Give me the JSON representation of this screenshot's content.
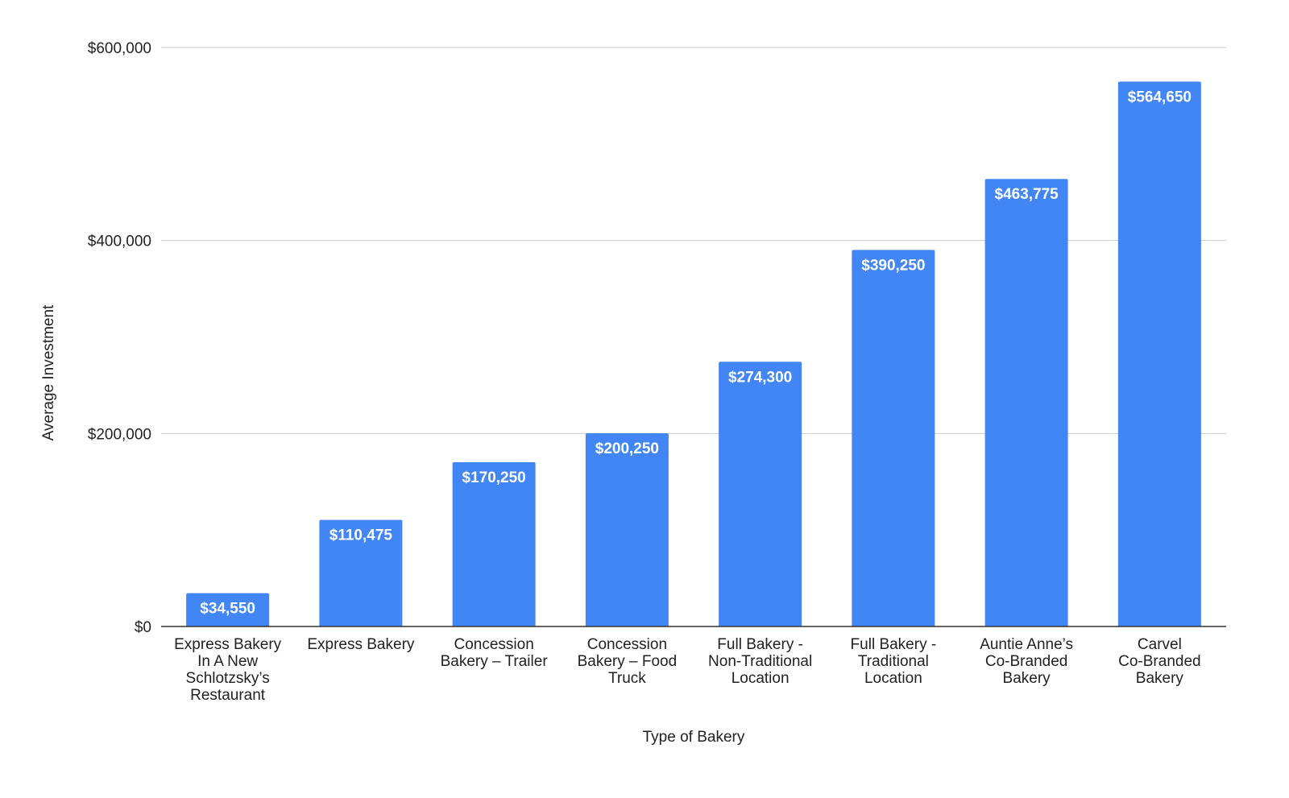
{
  "chart_data": {
    "type": "bar",
    "title": "",
    "xlabel": "Type of Bakery",
    "ylabel": "Average Investment",
    "ylim": [
      0,
      600000
    ],
    "yticks": [
      0,
      200000,
      400000,
      600000
    ],
    "ytick_labels": [
      "$0",
      "$200,000",
      "$400,000",
      "$600,000"
    ],
    "grid": true,
    "legend": "none",
    "bar_color": "#4285f4",
    "categories": [
      [
        "Express Bakery",
        "In A New",
        "Schlotzsky’s",
        "Restaurant"
      ],
      [
        "Express Bakery"
      ],
      [
        "Concession",
        "Bakery – Trailer"
      ],
      [
        "Concession",
        "Bakery – Food",
        "Truck"
      ],
      [
        "Full Bakery -",
        "Non-Traditional",
        "Location"
      ],
      [
        "Full Bakery -",
        "Traditional",
        "Location"
      ],
      [
        "Auntie Anne’s",
        "Co-Branded",
        "Bakery"
      ],
      [
        "Carvel",
        "Co-Branded",
        "Bakery"
      ]
    ],
    "values": [
      34550,
      110475,
      170250,
      200250,
      274300,
      390250,
      463775,
      564650
    ],
    "data_labels": [
      "$34,550",
      "$110,475",
      "$170,250",
      "$200,250",
      "$274,300",
      "$390,250",
      "$463,775",
      "$564,650"
    ]
  }
}
